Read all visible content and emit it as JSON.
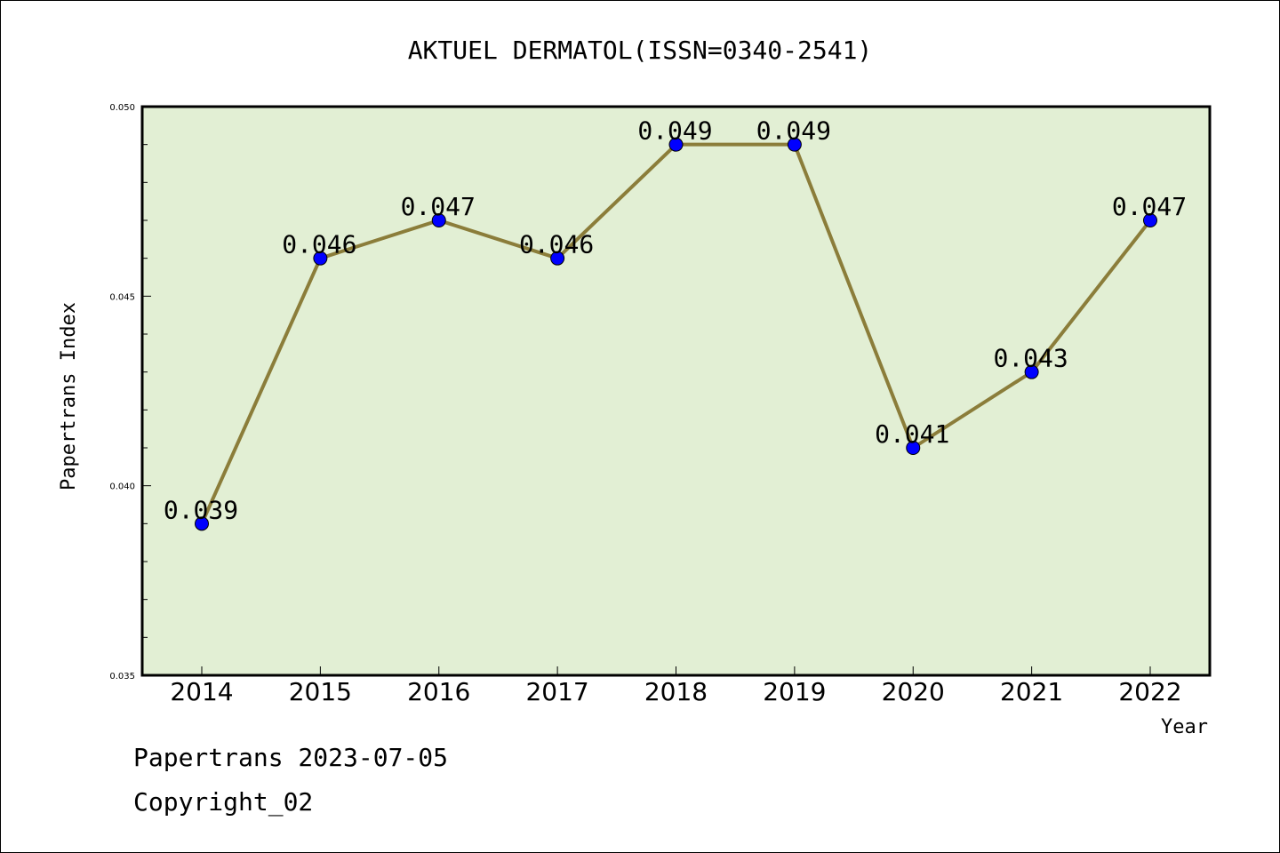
{
  "chart_data": {
    "type": "line",
    "title": "AKTUEL DERMATOL(ISSN=0340-2541)",
    "xlabel": "Year",
    "ylabel": "Papertrans Index",
    "categories": [
      "2014",
      "2015",
      "2016",
      "2017",
      "2018",
      "2019",
      "2020",
      "2021",
      "2022"
    ],
    "values": [
      0.039,
      0.046,
      0.047,
      0.046,
      0.049,
      0.049,
      0.041,
      0.043,
      0.047
    ],
    "data_labels": [
      "0.039",
      "0.046",
      "0.047",
      "0.046",
      "0.049",
      "0.049",
      "0.041",
      "0.043",
      "0.047"
    ],
    "ylim": [
      0.035,
      0.05
    ],
    "yticks": [
      "0.035",
      "0.040",
      "0.045",
      "0.050"
    ],
    "grid": false,
    "colors": {
      "plot_background": "#e2efd4",
      "line": "#8b7d3a",
      "marker": "#0000ff"
    }
  },
  "footer": {
    "line1": "Papertrans 2023-07-05",
    "line2": "Copyright_02"
  }
}
